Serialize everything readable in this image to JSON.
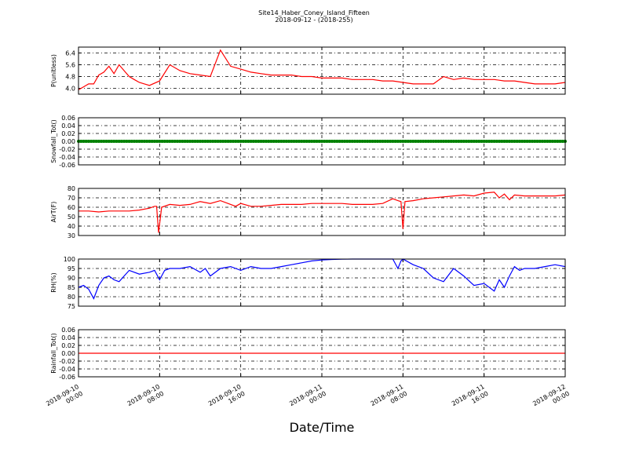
{
  "chart_data": {
    "type": "line",
    "title": "Site14_Haber_Coney_Island_Fifteen",
    "subtitle": "2018-09-12 - (2018-255)",
    "xlabel": "Date/Time",
    "x_ticks": [
      {
        "line1": "2018-09-10",
        "line2": "00:00",
        "hours": 0
      },
      {
        "line1": "2018-09-10",
        "line2": "08:00",
        "hours": 8
      },
      {
        "line1": "2018-09-10",
        "line2": "16:00",
        "hours": 16
      },
      {
        "line1": "2018-09-11",
        "line2": "00:00",
        "hours": 24
      },
      {
        "line1": "2018-09-11",
        "line2": "08:00",
        "hours": 32
      },
      {
        "line1": "2018-09-11",
        "line2": "16:00",
        "hours": 40
      },
      {
        "line1": "2018-09-12",
        "line2": "00:00",
        "hours": 48
      }
    ],
    "xlim": [
      0,
      48
    ],
    "grid": true,
    "panels": [
      {
        "ylabel": "P(unitless)",
        "ylim": [
          3.6,
          6.8
        ],
        "yticks": [
          "4.0",
          "4.8",
          "5.6",
          "6.4"
        ],
        "ytick_values": [
          4.0,
          4.8,
          5.6,
          6.4
        ],
        "color": "#ff0000",
        "x": [
          0,
          0.5,
          1,
          1.5,
          2,
          2.5,
          3,
          3.5,
          4,
          4.5,
          5,
          5.5,
          6,
          6.5,
          7,
          8,
          9,
          10,
          11,
          12,
          13,
          14,
          15,
          16,
          17,
          18,
          19,
          20,
          21,
          22,
          23,
          24,
          25,
          26,
          27,
          28,
          29,
          30,
          31,
          32,
          33,
          34,
          35,
          36,
          37,
          38,
          39,
          40,
          41,
          42,
          43,
          44,
          45,
          46,
          47,
          48
        ],
        "values": [
          3.9,
          4.1,
          4.3,
          4.3,
          4.9,
          5.1,
          5.5,
          5.0,
          5.6,
          5.2,
          4.8,
          4.6,
          4.4,
          4.3,
          4.2,
          4.5,
          5.6,
          5.2,
          5.0,
          4.9,
          4.8,
          6.6,
          5.5,
          5.3,
          5.1,
          5.0,
          4.9,
          4.9,
          4.9,
          4.8,
          4.8,
          4.7,
          4.7,
          4.7,
          4.6,
          4.6,
          4.6,
          4.5,
          4.5,
          4.4,
          4.3,
          4.3,
          4.3,
          4.8,
          4.6,
          4.7,
          4.6,
          4.6,
          4.6,
          4.5,
          4.5,
          4.4,
          4.3,
          4.3,
          4.3,
          4.4
        ]
      },
      {
        "ylabel": "Snowfall_Tot()",
        "ylim": [
          -0.06,
          0.06
        ],
        "yticks": [
          "0.06",
          "0.04",
          "0.02",
          "0.00",
          "-0.02",
          "-0.04",
          "-0.06"
        ],
        "ytick_values": [
          0.06,
          0.04,
          0.02,
          0.0,
          -0.02,
          -0.04,
          -0.06
        ],
        "color": "#008000",
        "x": [
          0,
          48
        ],
        "values": [
          0,
          0
        ],
        "markers": true
      },
      {
        "ylabel": "AirT(F)",
        "ylim": [
          30,
          80
        ],
        "yticks": [
          "30",
          "40",
          "50",
          "60",
          "70",
          "80"
        ],
        "ytick_values": [
          30,
          40,
          50,
          60,
          70,
          80
        ],
        "color": "#ff0000",
        "x": [
          0,
          1,
          2,
          3,
          4,
          5,
          6,
          7,
          7.5,
          7.7,
          7.9,
          8.2,
          9,
          10,
          11,
          12,
          13,
          14,
          15,
          15.5,
          16,
          17,
          18,
          19,
          20,
          21,
          22,
          23,
          24,
          25,
          26,
          27,
          28,
          29,
          30,
          31,
          31.5,
          31.8,
          32,
          32.2,
          33,
          34,
          35,
          36,
          37,
          38,
          39,
          40,
          41,
          41.5,
          42,
          42.5,
          43,
          44,
          45,
          46,
          47,
          48
        ],
        "values": [
          56,
          56,
          55,
          56,
          56,
          56,
          57,
          59,
          61,
          61,
          33,
          60,
          63,
          62,
          63,
          66,
          64,
          67,
          63,
          61,
          64,
          61,
          61,
          62,
          63,
          63,
          63,
          64,
          64,
          64,
          64,
          63,
          63,
          63,
          64,
          69,
          67,
          66,
          37,
          66,
          67,
          69,
          70,
          71,
          72,
          73,
          72,
          75,
          76,
          70,
          74,
          68,
          73,
          72,
          72,
          72,
          72,
          73
        ]
      },
      {
        "ylabel": "RH(%)",
        "ylim": [
          75,
          100
        ],
        "yticks": [
          "75",
          "80",
          "85",
          "90",
          "95",
          "100"
        ],
        "ytick_values": [
          75,
          80,
          85,
          90,
          95,
          100
        ],
        "color": "#0000ff",
        "x": [
          0,
          0.5,
          1,
          1.5,
          2,
          2.5,
          3,
          3.5,
          4,
          5,
          6,
          7,
          7.5,
          8,
          8.5,
          9,
          10,
          11,
          12,
          12.5,
          13,
          14,
          15,
          16,
          17,
          18,
          19,
          20,
          21,
          22,
          23,
          24,
          25,
          26,
          27,
          28,
          29,
          30,
          31,
          31.5,
          31.8,
          32,
          33,
          34,
          35,
          36,
          37,
          38,
          39,
          40,
          41,
          41.5,
          42,
          42.5,
          43,
          43.5,
          44,
          45,
          46,
          47,
          48
        ],
        "values": [
          85,
          86,
          84,
          79,
          86,
          90,
          91,
          89,
          88,
          94,
          92,
          93,
          94,
          89,
          94,
          95,
          95,
          96,
          93,
          95,
          91,
          95,
          96,
          94,
          96,
          95,
          95,
          96,
          97,
          98,
          99,
          99.5,
          99.8,
          99.9,
          100,
          100,
          100,
          100,
          100,
          95,
          99,
          100,
          97,
          95,
          90,
          88,
          95,
          91,
          86,
          87,
          83,
          89,
          85,
          91,
          96,
          94,
          95,
          95,
          96,
          97,
          96
        ]
      },
      {
        "ylabel": "Rainfall_Tot()",
        "ylim": [
          -0.06,
          0.06
        ],
        "yticks": [
          "0.06",
          "0.04",
          "0.02",
          "0.00",
          "-0.02",
          "-0.04",
          "-0.06"
        ],
        "ytick_values": [
          0.06,
          0.04,
          0.02,
          0.0,
          -0.02,
          -0.04,
          -0.06
        ],
        "color": "#ff0000",
        "x": [
          0,
          48
        ],
        "values": [
          0,
          0
        ]
      }
    ]
  }
}
